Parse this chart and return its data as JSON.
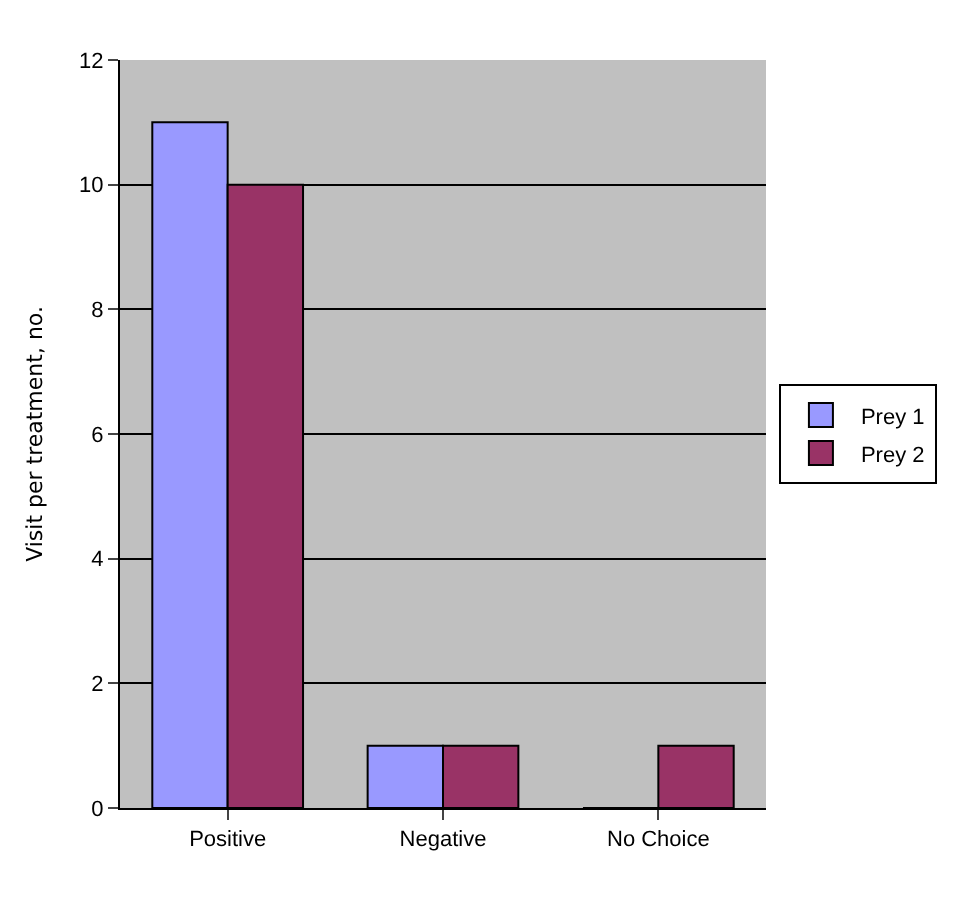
{
  "chart_data": {
    "type": "bar",
    "ylabel": "Visit per treatment, no.",
    "categories": [
      "Positive",
      "Negative",
      "No Choice"
    ],
    "series": [
      {
        "name": "Prey 1",
        "color": "#9999ff",
        "values": [
          11,
          1,
          0
        ]
      },
      {
        "name": "Prey 2",
        "color": "#993366",
        "values": [
          10,
          1,
          1
        ]
      }
    ],
    "ylim": [
      0,
      12
    ],
    "yticks": [
      0,
      2,
      4,
      6,
      8,
      10,
      12
    ],
    "grid": "y",
    "legend": "right"
  }
}
